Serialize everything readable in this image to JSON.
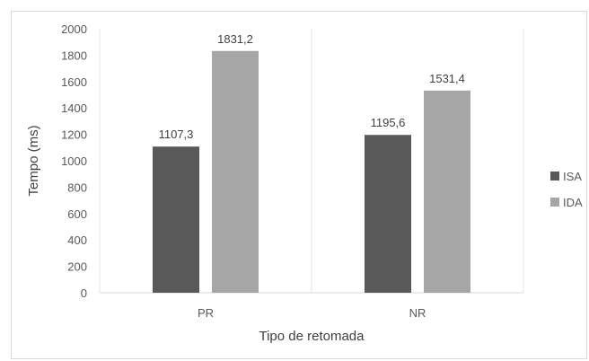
{
  "chart_data": {
    "type": "bar",
    "categories": [
      "PR",
      "NR"
    ],
    "series": [
      {
        "name": "ISA",
        "values": [
          1107.3,
          1195.6
        ],
        "labels": [
          "1107,3",
          "1195,6"
        ],
        "color": "#595959"
      },
      {
        "name": "IDA",
        "values": [
          1831.2,
          1531.4
        ],
        "labels": [
          "1831,2",
          "1531,4"
        ],
        "color": "#a6a6a6"
      }
    ],
    "xlabel": "Tipo de retomada",
    "ylabel": "Tempo (ms)",
    "ylim": [
      0,
      2000
    ],
    "yticks": [
      0,
      200,
      400,
      600,
      800,
      1000,
      1200,
      1400,
      1600,
      1800,
      2000
    ],
    "grid": "vertical",
    "legend": "right"
  }
}
